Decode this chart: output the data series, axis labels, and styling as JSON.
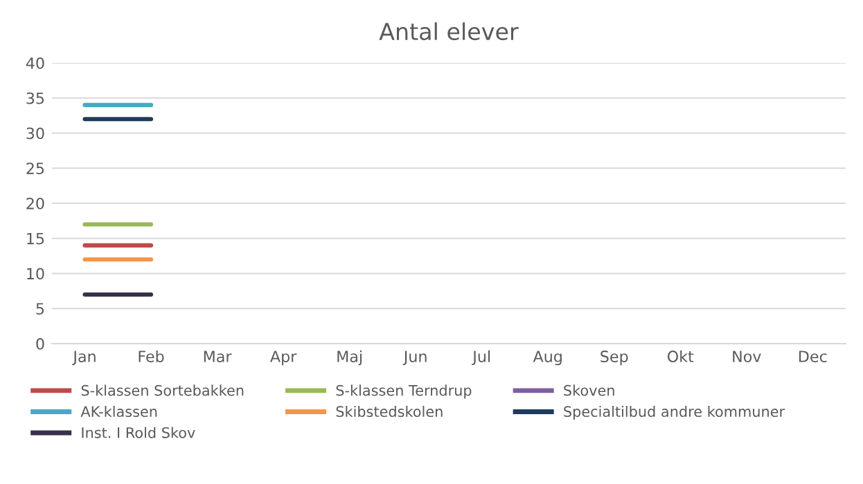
{
  "chart_data": {
    "type": "line",
    "title": "Antal elever",
    "categories": [
      "Jan",
      "Feb",
      "Mar",
      "Apr",
      "Maj",
      "Jun",
      "Jul",
      "Aug",
      "Sep",
      "Okt",
      "Nov",
      "Dec"
    ],
    "series": [
      {
        "name": "S-klassen Sortebakken",
        "color": "#be4b48",
        "values": [
          14,
          14,
          null,
          null,
          null,
          null,
          null,
          null,
          null,
          null,
          null,
          null
        ]
      },
      {
        "name": "S-klassen Terndrup",
        "color": "#98b954",
        "values": [
          17,
          17,
          null,
          null,
          null,
          null,
          null,
          null,
          null,
          null,
          null,
          null
        ]
      },
      {
        "name": "Skoven",
        "color": "#7d60a0",
        "values": [
          null,
          null,
          null,
          null,
          null,
          null,
          null,
          null,
          null,
          null,
          null,
          null
        ]
      },
      {
        "name": "AK-klassen",
        "color": "#46aac5",
        "values": [
          34,
          34,
          null,
          null,
          null,
          null,
          null,
          null,
          null,
          null,
          null,
          null
        ]
      },
      {
        "name": "Skibstedskolen",
        "color": "#f69546",
        "values": [
          12,
          12,
          null,
          null,
          null,
          null,
          null,
          null,
          null,
          null,
          null,
          null
        ]
      },
      {
        "name": "Specialtilbud andre kommuner",
        "color": "#1f3b5c",
        "values": [
          32,
          32,
          null,
          null,
          null,
          null,
          null,
          null,
          null,
          null,
          null,
          null
        ]
      },
      {
        "name": "Inst. I Rold Skov",
        "color": "#3a2f4b",
        "values": [
          7,
          7,
          null,
          null,
          null,
          null,
          null,
          null,
          null,
          null,
          null,
          null
        ]
      }
    ],
    "ylim": [
      0,
      40
    ],
    "yticks": [
      0,
      5,
      10,
      15,
      20,
      25,
      30,
      35,
      40
    ],
    "grid": "y",
    "legend": "bottom",
    "marker": "none",
    "line_style": "solid"
  }
}
